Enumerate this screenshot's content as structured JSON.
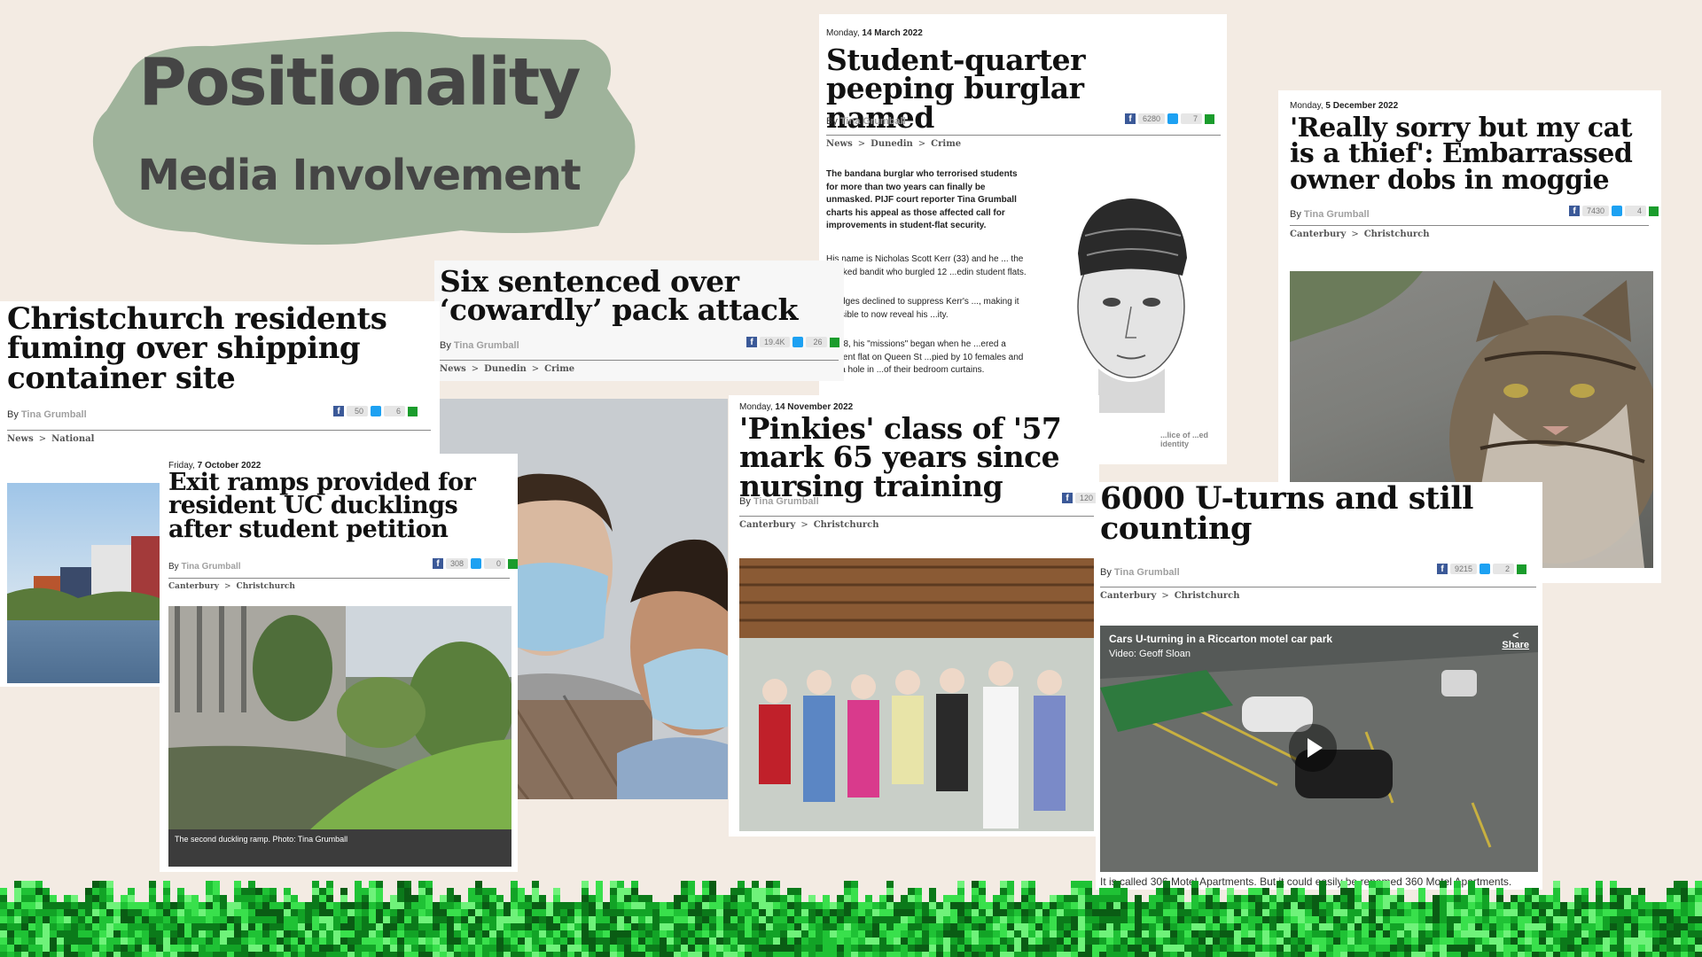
{
  "slide": {
    "title": "Positionality",
    "subtitle": "Media Involvement"
  },
  "articles": {
    "student_quarter": {
      "date_day": "Monday,",
      "date": "14 March 2022",
      "headline": "Student-quarter peeping burglar named",
      "by": "By",
      "author": "Tina Grumball",
      "shares_fb": "6280",
      "shares_tw": "7",
      "crumb": [
        "News",
        "Dunedin",
        "Crime"
      ],
      "body_lead": "The bandana burglar who terrorised students for more than two years can finally be unmasked. PIJF court reporter Tina Grumball charts his appeal as those affected call for improvements in student-flat security.",
      "body_p1": "His name is Nicholas Scott Kerr (33) and he ... the masked bandit who burgled 12 ...edin student flats.",
      "body_p2": "...judges declined to suppress Kerr's ..., making it possible to now reveal his ...ity.",
      "body_p3": "...018, his \"missions\" began when he ...ered a student flat on Queen St ...pied by 10 females and cut a hole in ...of their bedroom curtains.",
      "photo_caption": "...lice of ...ed identity"
    },
    "cat": {
      "date_day": "Monday,",
      "date": "5 December 2022",
      "headline": "'Really sorry but my cat is a thief': Embarrassed owner dobs in moggie",
      "by": "By",
      "author": "Tina Grumball",
      "shares_fb": "7430",
      "shares_tw": "4",
      "crumb": [
        "Canterbury",
        "Christchurch"
      ]
    },
    "six_sentenced": {
      "headline": "Six sentenced over ‘cowardly’ pack attack",
      "by": "By",
      "author": "Tina Grumball",
      "shares_fb": "19.4K",
      "shares_tw": "26",
      "crumb": [
        "News",
        "Dunedin",
        "Crime"
      ]
    },
    "container": {
      "headline": "Christchurch residents fuming over shipping container site",
      "by": "By",
      "author": "Tina Grumball",
      "shares_fb": "50",
      "shares_tw": "6",
      "crumb": [
        "News",
        "National"
      ]
    },
    "ducklings": {
      "date_day": "Friday,",
      "date": "7 October 2022",
      "headline": "Exit ramps provided for resident UC ducklings after student petition",
      "by": "By",
      "author": "Tina Grumball",
      "shares_fb": "308",
      "shares_tw": "0",
      "crumb": [
        "Canterbury",
        "Christchurch"
      ],
      "caption": "The second duckling ramp. Photo: Tina Grumball"
    },
    "pinkies": {
      "date_day": "Monday,",
      "date": "14 November 2022",
      "headline": "'Pinkies' class of '57 mark 65 years since nursing training",
      "by": "By",
      "author": "Tina Grumball",
      "shares_fb": "120",
      "crumb": [
        "Canterbury",
        "Christchurch"
      ]
    },
    "uturns": {
      "headline": "6000 U-turns and still counting",
      "by": "By",
      "author": "Tina Grumball",
      "shares_fb": "9215",
      "shares_tw": "2",
      "crumb": [
        "Canterbury",
        "Christchurch"
      ],
      "video_title": "Cars U-turning in a Riccarton motel car park",
      "video_credit": "Video: Geoff Sloan",
      "share_label": "Share",
      "caption": "It is called 306 Motel Apartments. But it could easily be renamed 360 Motel Apartments."
    }
  }
}
